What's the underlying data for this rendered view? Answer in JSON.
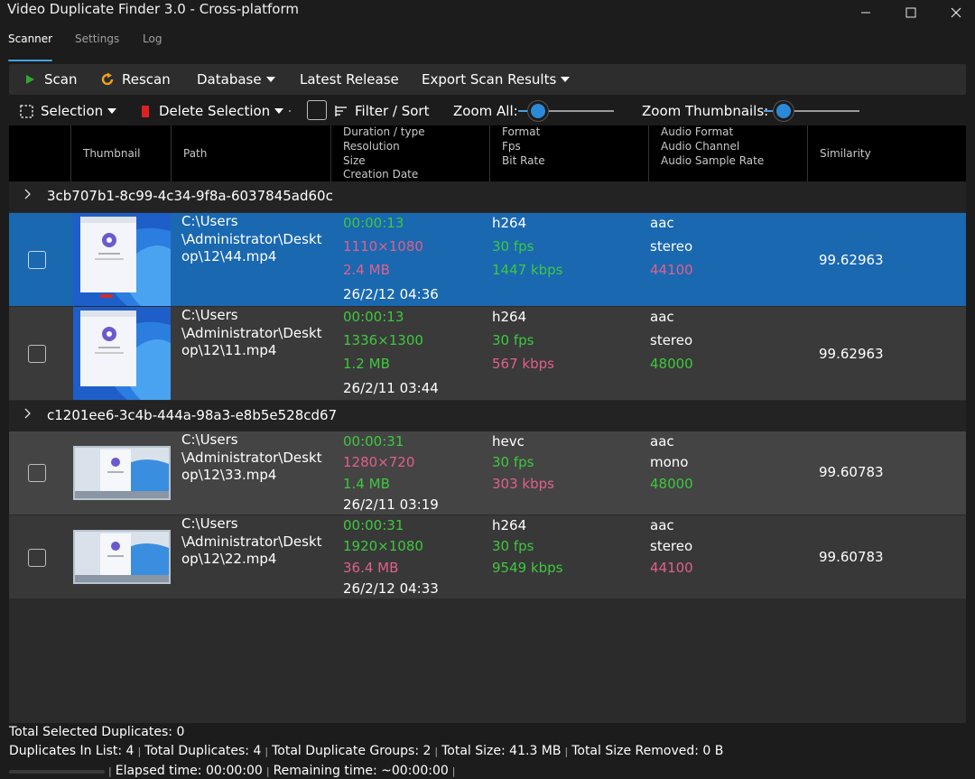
{
  "window": {
    "title": "Video Duplicate Finder 3.0 - Cross-platform",
    "controls": {
      "minimize": "—",
      "maximize": "☐",
      "close": "✕"
    }
  },
  "tabs": [
    {
      "label": "Scanner",
      "active": true
    },
    {
      "label": "Settings",
      "active": false
    },
    {
      "label": "Log",
      "active": false
    }
  ],
  "toolbar": {
    "scan": "Scan",
    "rescan": "Rescan",
    "database": "Database",
    "latest_release": "Latest Release",
    "export": "Export Scan Results",
    "scan_icon": "play-icon",
    "rescan_icon": "refresh-icon",
    "scan_color": "#2eaa2e",
    "rescan_color": "#f0a020"
  },
  "toolbar2": {
    "selection": "Selection",
    "delete_selection": "Delete Selection",
    "filter_sort": "Filter / Sort",
    "zoom_all": "Zoom All:",
    "zoom_thumbnails": "Zoom Thumbnails:",
    "zoom_all_level": 0.22,
    "zoom_thumbnails_level": 0.2,
    "delete_color": "#e02020"
  },
  "columns": {
    "thumbnail": "Thumbnail",
    "path": "Path",
    "duration": [
      "Duration / type",
      "Resolution",
      "Size",
      "Creation Date"
    ],
    "format": [
      "Format",
      "Fps",
      "Bit Rate"
    ],
    "audio": [
      "Audio Format",
      "Audio Channel",
      "Audio Sample Rate"
    ],
    "similarity": "Similarity"
  },
  "groups": [
    {
      "id": "3cb707b1-8c99-4c34-9f8a-6037845ad60c",
      "items": [
        {
          "path": [
            "C:\\Users",
            "\\Administrator\\Deskt",
            "op\\12\\44.mp4"
          ],
          "duration": "00:00:13",
          "resolution": "1110×1080",
          "size": "2.4 MB",
          "date": "26/2/12 04:36",
          "format": "h264",
          "fps": "30 fps",
          "bitrate": "1447 kbps",
          "audio_format": "aac",
          "audio_channel": "stereo",
          "sample_rate": "44100",
          "similarity": "99.62963",
          "selected": true
        },
        {
          "path": [
            "C:\\Users",
            "\\Administrator\\Deskt",
            "op\\12\\11.mp4"
          ],
          "duration": "00:00:13",
          "resolution": "1336×1300",
          "size": "1.2 MB",
          "date": "26/2/11 03:44",
          "format": "h264",
          "fps": "30 fps",
          "bitrate": "567 kbps",
          "audio_format": "aac",
          "audio_channel": "stereo",
          "sample_rate": "48000",
          "similarity": "99.62963",
          "selected": false
        }
      ]
    },
    {
      "id": "c1201ee6-3c4b-444a-98a3-e8b5e528cd67",
      "items": [
        {
          "path": [
            "C:\\Users",
            "\\Administrator\\Deskt",
            "op\\12\\33.mp4"
          ],
          "duration": "00:00:31",
          "resolution": "1280×720",
          "size": "1.4 MB",
          "date": "26/2/11 03:19",
          "format": "hevc",
          "fps": "30 fps",
          "bitrate": "303 kbps",
          "audio_format": "aac",
          "audio_channel": "mono",
          "sample_rate": "48000",
          "similarity": "99.60783",
          "selected": false
        },
        {
          "path": [
            "C:\\Users",
            "\\Administrator\\Deskt",
            "op\\12\\22.mp4"
          ],
          "duration": "00:00:31",
          "resolution": "1920×1080",
          "size": "36.4 MB",
          "date": "26/2/12 04:33",
          "format": "h264",
          "fps": "30 fps",
          "bitrate": "9549 kbps",
          "audio_format": "aac",
          "audio_channel": "stereo",
          "sample_rate": "44100",
          "similarity": "99.60783",
          "selected": false
        }
      ]
    }
  ],
  "colors": {
    "accent": "#1a68b0",
    "green": "#3ec83e",
    "pink": "#e0608a"
  },
  "status": {
    "total_selected": "Total Selected Duplicates: 0",
    "in_list": "Duplicates In List: 4",
    "total_duplicates": "Total Duplicates: 4",
    "total_groups": "Total Duplicate Groups: 2",
    "total_size": "Total Size: 41.3 MB",
    "total_removed": "Total Size Removed: 0 B",
    "elapsed": "Elapsed time: 00:00:00",
    "remaining": "Remaining time: ~00:00:00",
    "separator": "|"
  }
}
